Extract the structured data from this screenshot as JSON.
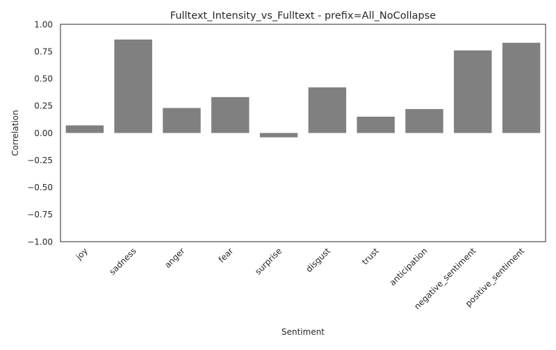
{
  "chart_data": {
    "type": "bar",
    "title": "Fulltext_Intensity_vs_Fulltext - prefix=All_NoCollapse",
    "xlabel": "Sentiment",
    "ylabel": "Correlation",
    "categories": [
      "joy",
      "sadness",
      "anger",
      "fear",
      "surprise",
      "disgust",
      "trust",
      "anticipation",
      "negative_sentiment",
      "positive_sentiment"
    ],
    "values": [
      0.07,
      0.86,
      0.23,
      0.33,
      -0.04,
      0.42,
      0.15,
      0.22,
      0.76,
      0.83
    ],
    "ylim": [
      -1.0,
      1.0
    ],
    "yticks": [
      "−1.00",
      "−0.75",
      "−0.50",
      "−0.25",
      "0.00",
      "0.25",
      "0.50",
      "0.75",
      "1.00"
    ],
    "ytick_values": [
      -1.0,
      -0.75,
      -0.5,
      -0.25,
      0.0,
      0.25,
      0.5,
      0.75,
      1.0
    ],
    "grid": false,
    "legend": "none",
    "bar_color": "#808080"
  }
}
